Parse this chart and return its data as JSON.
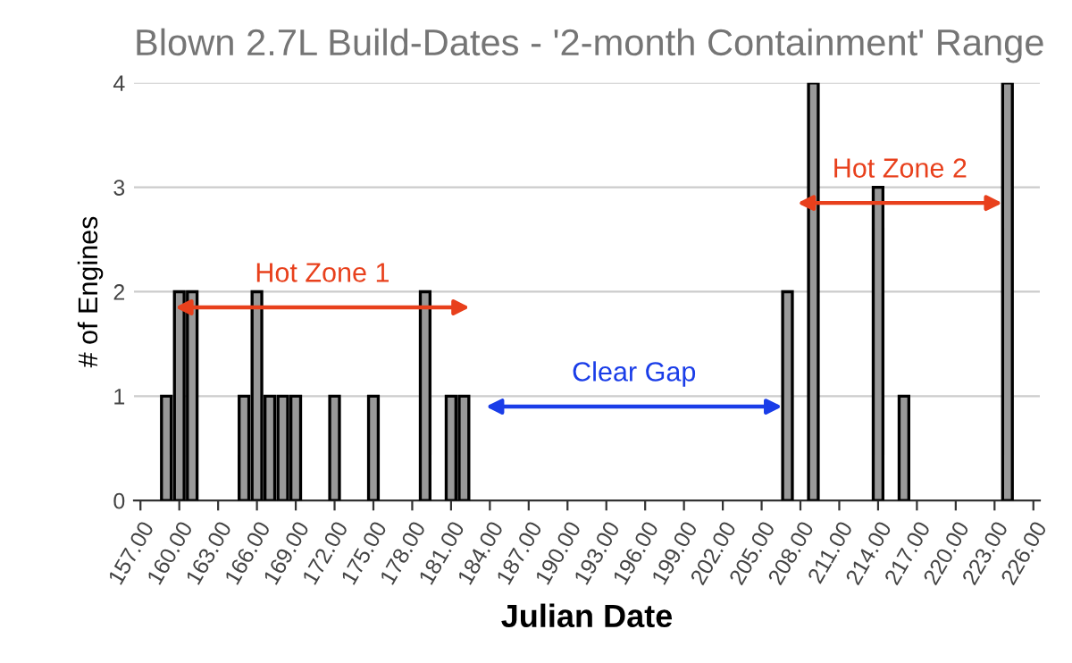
{
  "chart_data": {
    "type": "bar",
    "title": "Blown 2.7L Build-Dates - '2-month Containment' Range",
    "xlabel": "Julian Date",
    "ylabel": "# of Engines",
    "x": [
      157,
      158,
      159,
      160,
      161,
      162,
      163,
      164,
      165,
      166,
      167,
      168,
      169,
      170,
      171,
      172,
      173,
      174,
      175,
      176,
      177,
      178,
      179,
      180,
      181,
      182,
      183,
      184,
      185,
      186,
      187,
      188,
      189,
      190,
      191,
      192,
      193,
      194,
      195,
      196,
      197,
      198,
      199,
      200,
      201,
      202,
      203,
      204,
      205,
      206,
      207,
      208,
      209,
      210,
      211,
      212,
      213,
      214,
      215,
      216,
      217,
      218,
      219,
      220,
      221,
      222,
      223,
      224,
      225,
      226
    ],
    "values": [
      0,
      0,
      1,
      2,
      2,
      0,
      0,
      0,
      1,
      2,
      1,
      1,
      1,
      0,
      0,
      1,
      0,
      0,
      1,
      0,
      0,
      0,
      2,
      0,
      1,
      1,
      0,
      0,
      0,
      0,
      0,
      0,
      0,
      0,
      0,
      0,
      0,
      0,
      0,
      0,
      0,
      0,
      0,
      0,
      0,
      0,
      0,
      0,
      0,
      0,
      2,
      0,
      4,
      0,
      0,
      0,
      0,
      3,
      0,
      1,
      0,
      0,
      0,
      0,
      0,
      0,
      0,
      4,
      0,
      0
    ],
    "color": "#999999",
    "xlim": [
      156.5,
      226.5
    ],
    "xticks": [
      {
        "value": 157,
        "label": "157.00"
      },
      {
        "value": 160,
        "label": "160.00"
      },
      {
        "value": 163,
        "label": "163.00"
      },
      {
        "value": 166,
        "label": "166.00"
      },
      {
        "value": 169,
        "label": "169.00"
      },
      {
        "value": 172,
        "label": "172.00"
      },
      {
        "value": 175,
        "label": "175.00"
      },
      {
        "value": 178,
        "label": "178.00"
      },
      {
        "value": 181,
        "label": "181.00"
      },
      {
        "value": 184,
        "label": "184.00"
      },
      {
        "value": 187,
        "label": "187.00"
      },
      {
        "value": 190,
        "label": "190.00"
      },
      {
        "value": 193,
        "label": "193.00"
      },
      {
        "value": 196,
        "label": "196.00"
      },
      {
        "value": 199,
        "label": "199.00"
      },
      {
        "value": 202,
        "label": "202.00"
      },
      {
        "value": 205,
        "label": "205.00"
      },
      {
        "value": 208,
        "label": "208.00"
      },
      {
        "value": 211,
        "label": "211.00"
      },
      {
        "value": 214,
        "label": "214.00"
      },
      {
        "value": 217,
        "label": "217.00"
      },
      {
        "value": 220,
        "label": "220.00"
      },
      {
        "value": 223,
        "label": "223.00"
      },
      {
        "value": 226,
        "label": "226.00"
      }
    ],
    "ylim": [
      0,
      4
    ],
    "yticks": [
      0,
      1,
      2,
      3,
      4
    ],
    "grid": "y",
    "legend": false,
    "annotations": [
      "Hot Zone 1",
      "Clear Gap",
      "Hot Zone 2"
    ]
  }
}
